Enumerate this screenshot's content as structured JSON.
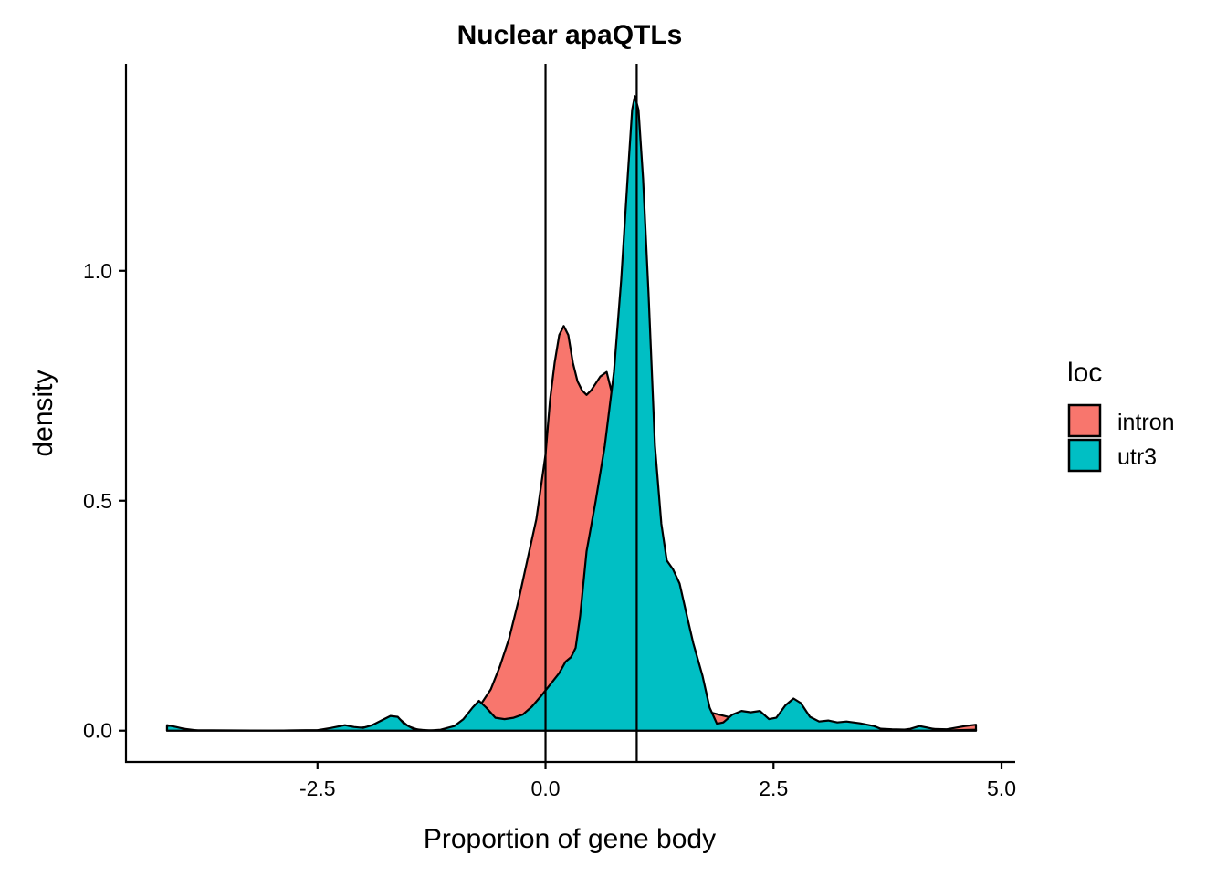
{
  "chart_data": {
    "type": "area",
    "title": "Nuclear apaQTLs",
    "xlabel": "Proportion of gene body",
    "ylabel": "density",
    "xlim": [
      -4.6,
      5.15
    ],
    "ylim": [
      -0.068,
      1.45
    ],
    "x_ticks": [
      -2.5,
      0.0,
      2.5,
      5.0
    ],
    "x_tick_labels": [
      "-2.5",
      "0.0",
      "2.5",
      "5.0"
    ],
    "y_ticks": [
      0.0,
      0.5,
      1.0
    ],
    "y_tick_labels": [
      "0.0",
      "0.5",
      "1.0"
    ],
    "vlines": [
      0.0,
      1.0
    ],
    "legend": {
      "title": "loc",
      "position": "right"
    },
    "grid": false,
    "series": [
      {
        "name": "intron",
        "color": "#F8766D",
        "points": [
          [
            -4.15,
            0.01
          ],
          [
            -4.0,
            0.005
          ],
          [
            -3.8,
            0.0
          ],
          [
            -3.0,
            0.0
          ],
          [
            -2.5,
            0.001
          ],
          [
            -2.3,
            0.005
          ],
          [
            -2.2,
            0.01
          ],
          [
            -2.05,
            0.006
          ],
          [
            -1.95,
            0.008
          ],
          [
            -1.85,
            0.016
          ],
          [
            -1.7,
            0.028
          ],
          [
            -1.6,
            0.025
          ],
          [
            -1.5,
            0.009
          ],
          [
            -1.4,
            0.002
          ],
          [
            -1.2,
            0.0
          ],
          [
            -1.1,
            0.002
          ],
          [
            -1.0,
            0.008
          ],
          [
            -0.9,
            0.018
          ],
          [
            -0.8,
            0.035
          ],
          [
            -0.7,
            0.06
          ],
          [
            -0.6,
            0.09
          ],
          [
            -0.5,
            0.14
          ],
          [
            -0.4,
            0.2
          ],
          [
            -0.3,
            0.28
          ],
          [
            -0.2,
            0.37
          ],
          [
            -0.1,
            0.46
          ],
          [
            0.0,
            0.6
          ],
          [
            0.05,
            0.72
          ],
          [
            0.1,
            0.8
          ],
          [
            0.15,
            0.86
          ],
          [
            0.2,
            0.88
          ],
          [
            0.25,
            0.86
          ],
          [
            0.3,
            0.8
          ],
          [
            0.35,
            0.76
          ],
          [
            0.4,
            0.74
          ],
          [
            0.45,
            0.73
          ],
          [
            0.5,
            0.74
          ],
          [
            0.6,
            0.77
          ],
          [
            0.67,
            0.78
          ],
          [
            0.72,
            0.74
          ],
          [
            0.8,
            0.66
          ],
          [
            0.9,
            0.5
          ],
          [
            1.0,
            0.33
          ],
          [
            1.1,
            0.21
          ],
          [
            1.2,
            0.13
          ],
          [
            1.3,
            0.09
          ],
          [
            1.4,
            0.07
          ],
          [
            1.6,
            0.05
          ],
          [
            1.8,
            0.04
          ],
          [
            2.0,
            0.03
          ],
          [
            2.2,
            0.024
          ],
          [
            2.5,
            0.022
          ],
          [
            2.7,
            0.026
          ],
          [
            2.9,
            0.02
          ],
          [
            3.2,
            0.012
          ],
          [
            3.5,
            0.006
          ],
          [
            3.8,
            0.003
          ],
          [
            4.0,
            0.002
          ],
          [
            4.2,
            0.004
          ],
          [
            4.4,
            0.003
          ],
          [
            4.6,
            0.01
          ],
          [
            4.72,
            0.013
          ]
        ]
      },
      {
        "name": "utr3",
        "color": "#00BFC4",
        "points": [
          [
            -4.15,
            0.012
          ],
          [
            -4.05,
            0.008
          ],
          [
            -3.9,
            0.001
          ],
          [
            -3.0,
            0.0
          ],
          [
            -2.5,
            0.001
          ],
          [
            -2.35,
            0.006
          ],
          [
            -2.2,
            0.012
          ],
          [
            -2.1,
            0.008
          ],
          [
            -2.0,
            0.006
          ],
          [
            -1.9,
            0.012
          ],
          [
            -1.8,
            0.022
          ],
          [
            -1.7,
            0.032
          ],
          [
            -1.62,
            0.03
          ],
          [
            -1.55,
            0.015
          ],
          [
            -1.45,
            0.004
          ],
          [
            -1.3,
            0.0
          ],
          [
            -1.15,
            0.002
          ],
          [
            -1.0,
            0.01
          ],
          [
            -0.9,
            0.025
          ],
          [
            -0.8,
            0.05
          ],
          [
            -0.73,
            0.065
          ],
          [
            -0.65,
            0.05
          ],
          [
            -0.55,
            0.028
          ],
          [
            -0.45,
            0.025
          ],
          [
            -0.35,
            0.028
          ],
          [
            -0.25,
            0.035
          ],
          [
            -0.15,
            0.052
          ],
          [
            -0.05,
            0.075
          ],
          [
            0.05,
            0.1
          ],
          [
            0.15,
            0.125
          ],
          [
            0.22,
            0.15
          ],
          [
            0.28,
            0.16
          ],
          [
            0.33,
            0.18
          ],
          [
            0.38,
            0.25
          ],
          [
            0.45,
            0.39
          ],
          [
            0.55,
            0.5
          ],
          [
            0.65,
            0.62
          ],
          [
            0.75,
            0.78
          ],
          [
            0.83,
            0.98
          ],
          [
            0.9,
            1.2
          ],
          [
            0.95,
            1.35
          ],
          [
            0.98,
            1.38
          ],
          [
            1.02,
            1.35
          ],
          [
            1.07,
            1.2
          ],
          [
            1.13,
            0.95
          ],
          [
            1.2,
            0.62
          ],
          [
            1.27,
            0.45
          ],
          [
            1.33,
            0.37
          ],
          [
            1.4,
            0.35
          ],
          [
            1.47,
            0.32
          ],
          [
            1.55,
            0.25
          ],
          [
            1.62,
            0.19
          ],
          [
            1.72,
            0.12
          ],
          [
            1.8,
            0.05
          ],
          [
            1.88,
            0.015
          ],
          [
            1.95,
            0.018
          ],
          [
            2.05,
            0.035
          ],
          [
            2.15,
            0.043
          ],
          [
            2.25,
            0.04
          ],
          [
            2.35,
            0.043
          ],
          [
            2.45,
            0.025
          ],
          [
            2.53,
            0.028
          ],
          [
            2.63,
            0.055
          ],
          [
            2.72,
            0.07
          ],
          [
            2.8,
            0.06
          ],
          [
            2.9,
            0.03
          ],
          [
            3.0,
            0.02
          ],
          [
            3.1,
            0.022
          ],
          [
            3.2,
            0.018
          ],
          [
            3.3,
            0.02
          ],
          [
            3.45,
            0.016
          ],
          [
            3.6,
            0.01
          ],
          [
            3.7,
            0.002
          ],
          [
            3.85,
            0.0
          ],
          [
            4.0,
            0.004
          ],
          [
            4.1,
            0.01
          ],
          [
            4.2,
            0.006
          ],
          [
            4.35,
            0.0
          ],
          [
            4.5,
            0.001
          ],
          [
            4.72,
            0.002
          ]
        ]
      }
    ]
  }
}
